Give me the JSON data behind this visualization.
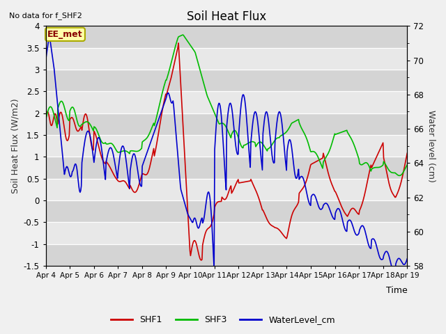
{
  "title": "Soil Heat Flux",
  "top_left_note": "No data for f_SHF2",
  "ylabel_left": "Soil Heat Flux (W/m2)",
  "ylabel_right": "Water level (cm)",
  "xlabel": "Time",
  "ylim_left": [
    -1.5,
    4.0
  ],
  "ylim_right": [
    58,
    72
  ],
  "yticks_left": [
    -1.5,
    -1.0,
    -0.5,
    0.0,
    0.5,
    1.0,
    1.5,
    2.0,
    2.5,
    3.0,
    3.5,
    4.0
  ],
  "yticks_right": [
    58,
    60,
    62,
    64,
    66,
    68,
    70,
    72
  ],
  "x_tick_labels": [
    "Apr 4",
    "Apr 5",
    "Apr 6",
    "Apr 7",
    "Apr 8",
    "Apr 9",
    "Apr 10",
    "Apr 11",
    "Apr 12",
    "Apr 13",
    "Apr 14",
    "Apr 15",
    "Apr 16",
    "Apr 17",
    "Apr 18",
    "Apr 19"
  ],
  "legend_labels": [
    "SHF1",
    "SHF3",
    "WaterLevel_cm"
  ],
  "colors": {
    "SHF1": "#cc0000",
    "SHF3": "#00bb00",
    "WaterLevel_cm": "#0000cc",
    "band_light": "#e8e8e8",
    "band_dark": "#d4d4d4",
    "grid_line": "#ffffff"
  },
  "annotation_text": "EE_met",
  "fig_bg": "#f0f0f0"
}
